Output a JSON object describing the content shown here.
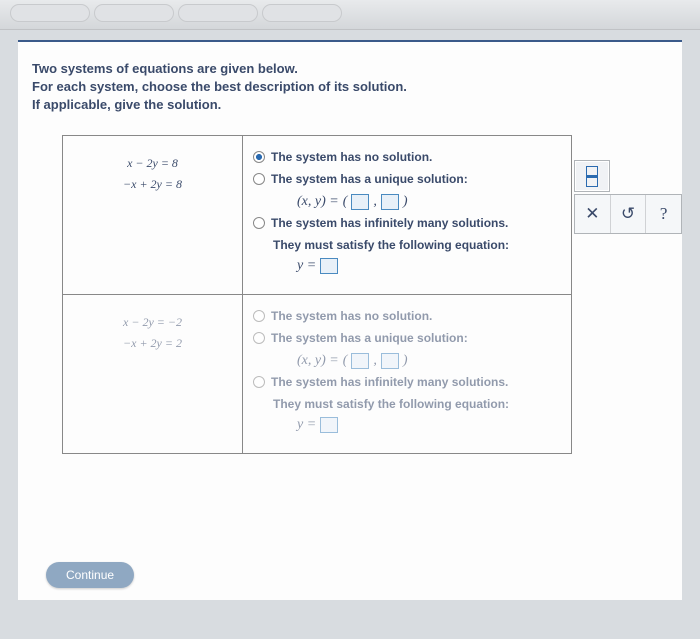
{
  "instructions": {
    "line1": "Two systems of equations are given below.",
    "line2": "For each system, choose the best description of its solution.",
    "line3": "If applicable, give the solution."
  },
  "systems": [
    {
      "eq1": "x − 2y  =  8",
      "eq2": "−x + 2y  =  8",
      "opts": {
        "none": "The system has no solution.",
        "unique": "The system has a unique solution:",
        "inf": "The system has infinitely many solutions.",
        "inf2": "They must satisfy the following equation:"
      },
      "xy_label": "(x, y)  =",
      "y_label": "y  ="
    },
    {
      "eq1": "x − 2y  =  −2",
      "eq2": "−x + 2y  =  2",
      "opts": {
        "none": "The system has no solution.",
        "unique": "The system has a unique solution:",
        "inf": "The system has infinitely many solutions.",
        "inf2": "They must satisfy the following equation:"
      },
      "xy_label": "(x, y)  =",
      "y_label": "y  ="
    }
  ],
  "tools": {
    "x": "✕",
    "reset": "↺",
    "help": "?"
  },
  "continue_label": "Continue"
}
